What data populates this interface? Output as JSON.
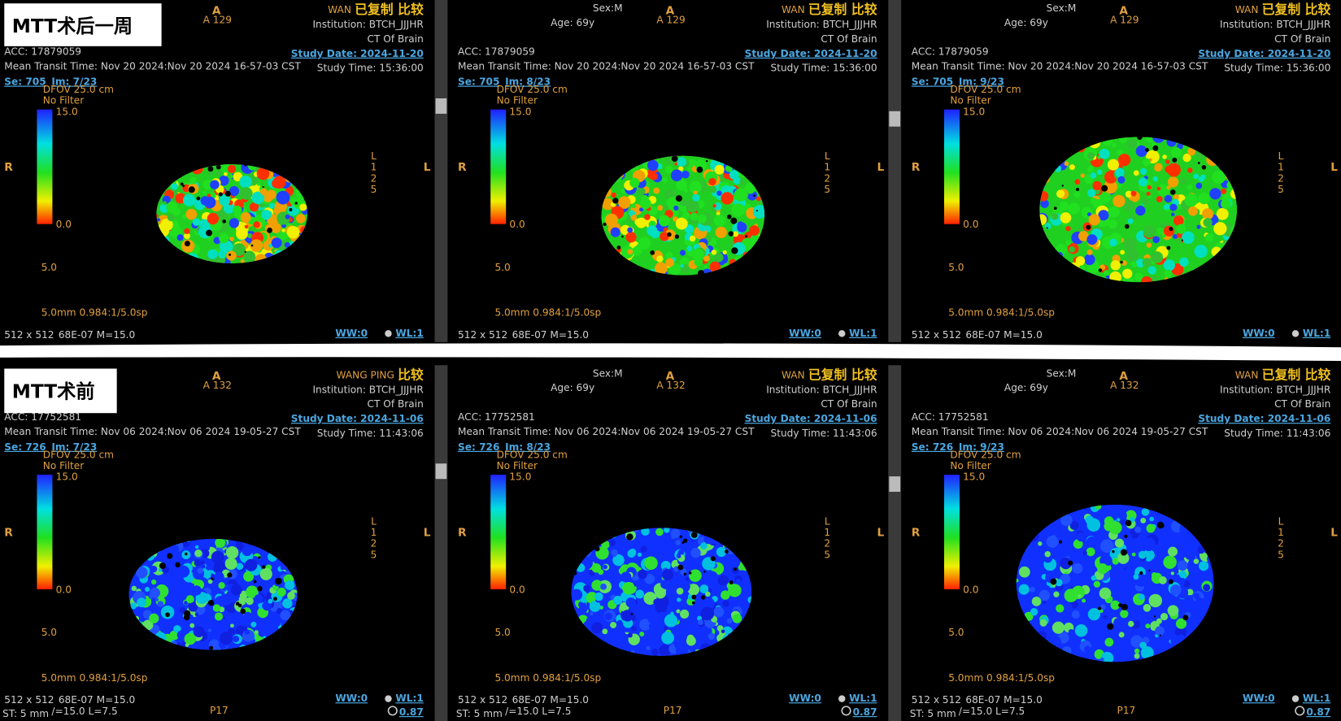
{
  "rows": [
    {
      "label": "MTT术后一周",
      "acc": "ACC: 17879059",
      "mtt": "Mean Transit Time: Nov 20 2024:Nov 20 2024 16-57-03 CST",
      "study_date": "Study Date: 2024-11-20",
      "study_time": "Study Time: 15:36:00",
      "series": "Se: 705",
      "slice": "A 129",
      "panels": [
        {
          "name": "WAN",
          "tag": "已复制 比较",
          "image": "Im: 7/23"
        },
        {
          "name": "WAN",
          "tag": "已复制 比较",
          "image": "Im: 8/23"
        },
        {
          "name": "WAN",
          "tag": "已复制 比较",
          "image": "Im: 9/23"
        }
      ]
    },
    {
      "label": "MTT术前",
      "acc": "ACC: 17752581",
      "mtt": "Mean Transit Time: Nov 06 2024:Nov 06 2024 19-05-27 CST",
      "study_date": "Study Date: 2024-11-06",
      "study_time": "Study Time: 11:43:06",
      "series": "Se: 726",
      "slice": "A 132",
      "panels": [
        {
          "name": "WANG PING",
          "tag": "比较",
          "image": "Im: 7/23"
        },
        {
          "name": "WAN",
          "tag": "已复制 比较",
          "image": "Im: 8/23"
        },
        {
          "name": "WAN",
          "tag": "已复制 比较",
          "image": "Im: 9/23"
        }
      ]
    }
  ],
  "common": {
    "institution": "Institution: BTCH_JJJHR",
    "protocol": "CT Of Brain",
    "sex": "Sex:M",
    "age": "Age: 69y",
    "anterior": "A",
    "right": "R",
    "left": "L",
    "side_scale": [
      "L",
      "1",
      "2",
      "5"
    ],
    "dfov": "DFOV 25.0 cm",
    "filter": "No Filter",
    "scale_max": "15.0",
    "scale_min": "0.0",
    "scale_mid": "5.0",
    "thickness": "5.0mm 0.984:1/5.0sp",
    "matrix": "512 x 512",
    "meta": "68E-07 M=15.0",
    "ww": "WW:0",
    "wl": "WL:1",
    "zoom": "0.87",
    "st": "ST: 5 mm",
    "window": "/=15.0 L=7.5",
    "posterior": "P17"
  }
}
